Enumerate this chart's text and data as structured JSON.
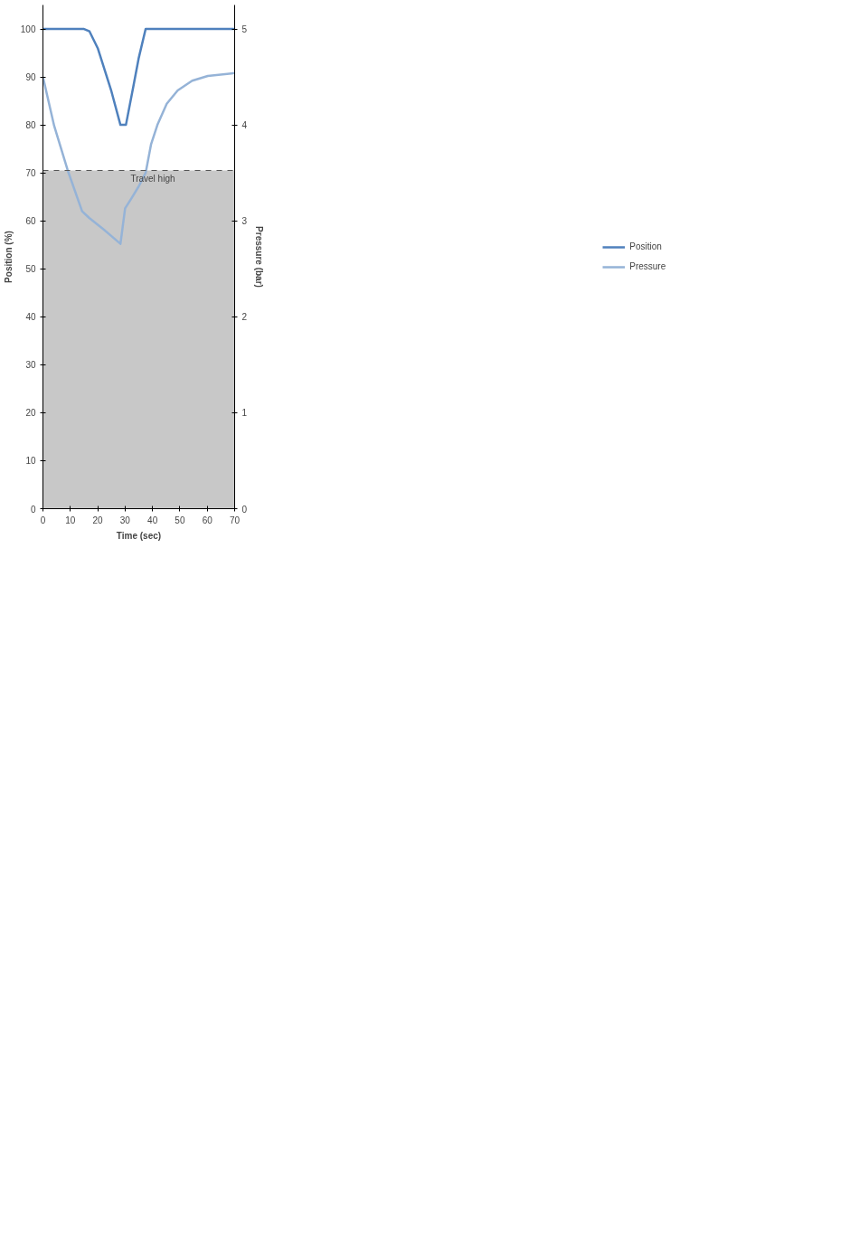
{
  "chart_data": {
    "type": "line",
    "xlabel": "Time (sec)",
    "ylabel": "Position (%)",
    "y2label": "Pressure (bar)",
    "xlim": [
      0,
      70
    ],
    "xticks": [
      0,
      10,
      20,
      30,
      40,
      50,
      60,
      70
    ],
    "ylim": [
      0,
      105
    ],
    "yticks": [
      0,
      10,
      20,
      30,
      40,
      50,
      60,
      70,
      80,
      90,
      100
    ],
    "y2lim": [
      0,
      5.25
    ],
    "y2ticks": [
      0,
      1,
      2,
      3,
      4,
      5
    ],
    "grid": false,
    "legend": "right",
    "marker": "none",
    "line_style": "solid",
    "series": [
      {
        "name": "Position",
        "color": "#4f81bd",
        "x": [
          0,
          15,
          17,
          20,
          25,
          28.3,
          30.3,
          33,
          35,
          37.5,
          70
        ],
        "values": [
          100,
          100,
          99.5,
          96,
          87,
          80,
          80,
          88,
          94,
          100,
          100
        ]
      },
      {
        "name": "Pressure",
        "color": "#95b3d7",
        "axis": "y2",
        "x": [
          0,
          4.1,
          9.0,
          14.3,
          16.9,
          22.6,
          28.3,
          30.0,
          32.0,
          35.0,
          37.5,
          39.5,
          41.8,
          45.2,
          49.2,
          54.5,
          60.2,
          70
        ],
        "values": [
          4.5,
          3.99,
          3.53,
          3.1,
          3.03,
          2.9,
          2.76,
          3.13,
          3.22,
          3.36,
          3.5,
          3.8,
          4.0,
          4.22,
          4.36,
          4.46,
          4.51,
          4.54
        ]
      }
    ],
    "bands": [
      {
        "axis": "y",
        "from": 0,
        "to": 70.5,
        "color": "#c8c8c8"
      }
    ],
    "ref_lines": [
      {
        "axis": "y",
        "value": 70.5,
        "label": "Travel high",
        "color": "#555555",
        "line_style": "dashed"
      }
    ]
  }
}
